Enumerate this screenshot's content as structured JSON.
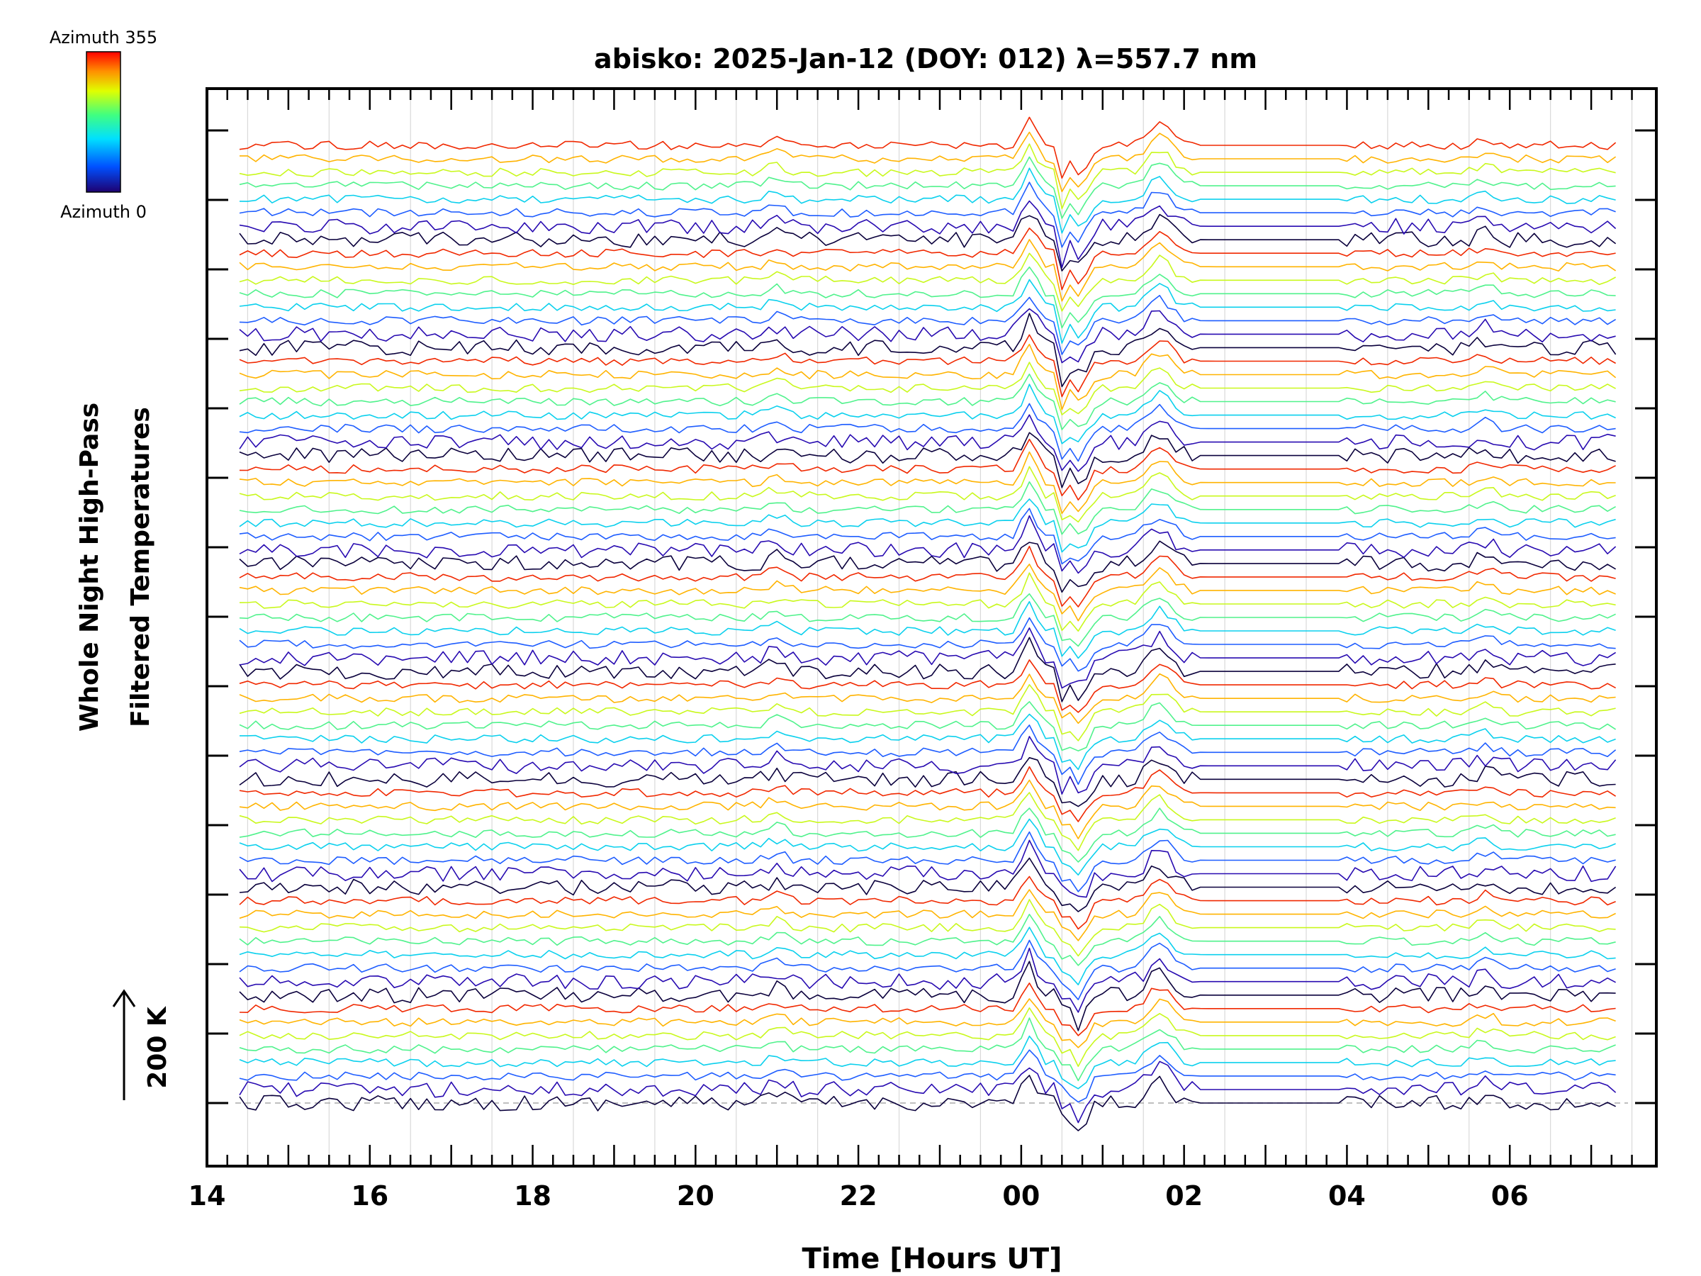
{
  "chart_data": {
    "type": "line",
    "title": "abisko: 2025-Jan-12 (DOY: 012) λ=557.7 nm",
    "xlabel": "Time [Hours UT]",
    "ylabel_line1": "Whole Night High-Pass",
    "ylabel_line2": "Filtered Temperatures",
    "scale_label": "200 K",
    "colorbar": {
      "top_label": "Azimuth 355",
      "bottom_label": "Azimuth 0",
      "colors": [
        "#ff0000",
        "#ff8000",
        "#ffff00",
        "#00ff80",
        "#00ffff",
        "#0080ff",
        "#0000ff",
        "#000080"
      ]
    },
    "xaxis": {
      "range_hours": [
        14.0,
        31.8
      ],
      "tick_labels": [
        "14",
        "16",
        "18",
        "20",
        "22",
        "00",
        "02",
        "04",
        "06"
      ],
      "tick_hours": [
        14,
        16,
        18,
        20,
        22,
        24,
        26,
        28,
        30
      ]
    },
    "series_count": 72,
    "x_start_hour": 14.4,
    "x_end_hour": 31.3,
    "data_gap_hours": [
      26.2,
      28.0
    ],
    "disturbance": {
      "peak_hour": 24.1,
      "step_hour": 24.5,
      "trough_hour": 24.7,
      "second_peak_hour": 25.7
    }
  }
}
